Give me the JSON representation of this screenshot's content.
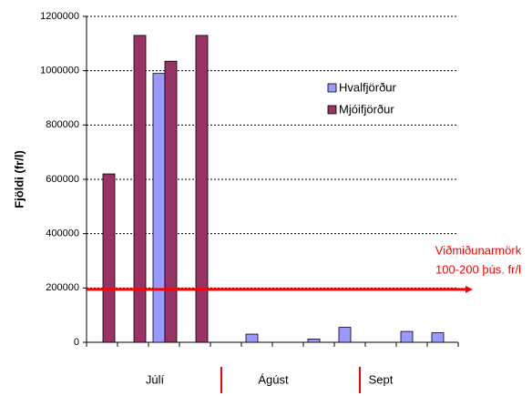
{
  "chart_data": {
    "type": "bar",
    "y_label": "Fjöldi (fr/l)",
    "categories": [
      null,
      null,
      null,
      null,
      null,
      null,
      null,
      null,
      null,
      null,
      null,
      null
    ],
    "series": [
      {
        "name": "Hvalfjörður",
        "color": "#9999ff",
        "values": [
          null,
          null,
          990000,
          null,
          null,
          30000,
          null,
          12000,
          55000,
          null,
          40000,
          35000
        ]
      },
      {
        "name": "Mjóifjörður",
        "color": "#993366",
        "values": [
          620000,
          1130000,
          1035000,
          1130000,
          null,
          null,
          null,
          null,
          null,
          null,
          null,
          null
        ]
      }
    ],
    "ylim": [
      0,
      1200000
    ],
    "yticks": [
      0,
      200000,
      400000,
      600000,
      800000,
      1000000,
      1200000
    ],
    "grid": true,
    "legend": "upper right",
    "groups": [
      "Júlí",
      "Ágúst",
      "Sept"
    ],
    "reference_line": {
      "value": 195000,
      "color": "#ff0000",
      "label": [
        "Viðmiðunarmörk",
        "100-200 þús. fr/l"
      ]
    }
  }
}
